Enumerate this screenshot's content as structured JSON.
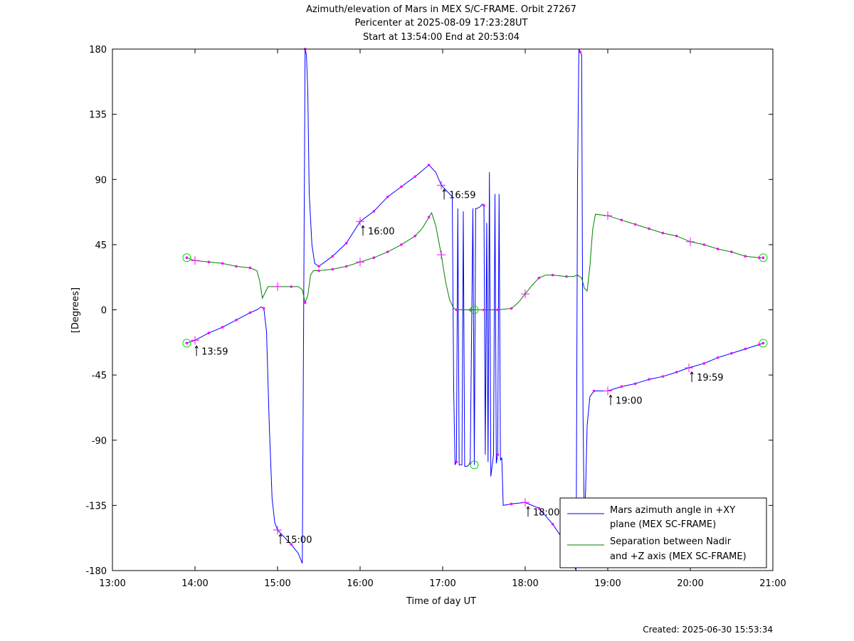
{
  "chart_data": {
    "type": "line",
    "title_lines": [
      "Azimuth/elevation of Mars in MEX S/C-FRAME.  Orbit 27267",
      "Pericenter at 2025-08-09 17:23:28UT",
      "Start at 13:54:00 End at 20:53:04"
    ],
    "xlabel": "Time of day UT",
    "ylabel": "[Degrees]",
    "xlim": [
      "13:00",
      "21:00"
    ],
    "ylim": [
      -180,
      180
    ],
    "x_ticks": [
      "13:00",
      "14:00",
      "15:00",
      "16:00",
      "17:00",
      "18:00",
      "19:00",
      "20:00",
      "21:00"
    ],
    "y_ticks": [
      "180",
      "135",
      "90",
      "45",
      "0",
      "-45",
      "-90",
      "-135",
      "-180"
    ],
    "colors": {
      "azimuth": "#0000ff",
      "separation": "#008000",
      "markers": "#ff00ff",
      "start_end": "#00dd00"
    },
    "legend": {
      "placement": "bottom-right",
      "entries": [
        {
          "line1": "Mars azimuth angle in +XY",
          "line2": "plane (MEX SC-FRAME)",
          "color": "#0000ff"
        },
        {
          "line1": "Separation between Nadir",
          "line2": "and +Z axis (MEX SC-FRAME)",
          "color": "#008000"
        }
      ]
    },
    "annotations": [
      {
        "label": "13:59",
        "x": "13:59",
        "y": -22
      },
      {
        "label": "15:00",
        "x": "15:00",
        "y": -152
      },
      {
        "label": "16:00",
        "x": "16:00",
        "y": 61
      },
      {
        "label": "16:59",
        "x": "16:59",
        "y": 86
      },
      {
        "label": "18:00",
        "x": "18:00",
        "y": -133
      },
      {
        "label": "19:00",
        "x": "19:00",
        "y": -56
      },
      {
        "label": "19:59",
        "x": "19:59",
        "y": -40
      }
    ],
    "series": [
      {
        "key": "azimuth",
        "name": "Mars azimuth angle in +XY plane (MEX SC-FRAME)",
        "points": [
          [
            "13:54",
            -23
          ],
          [
            "14:00",
            -21
          ],
          [
            "14:10",
            -16
          ],
          [
            "14:20",
            -12
          ],
          [
            "14:30",
            -7
          ],
          [
            "14:40",
            -2
          ],
          [
            "14:45",
            0
          ],
          [
            "14:48",
            2
          ],
          [
            "14:50",
            1
          ],
          [
            "14:52",
            -15
          ],
          [
            "14:54",
            -80
          ],
          [
            "14:56",
            -130
          ],
          [
            "14:58",
            -147
          ],
          [
            "15:00",
            -152
          ],
          [
            "15:05",
            -157
          ],
          [
            "15:10",
            -162
          ],
          [
            "15:15",
            -168
          ],
          [
            "15:18",
            -175
          ],
          [
            "15:20",
            180
          ],
          [
            "15:21",
            176
          ],
          [
            "15:22",
            150
          ],
          [
            "15:23",
            80
          ],
          [
            "15:25",
            45
          ],
          [
            "15:27",
            32
          ],
          [
            "15:30",
            30
          ],
          [
            "15:40",
            37
          ],
          [
            "15:50",
            46
          ],
          [
            "16:00",
            61
          ],
          [
            "16:10",
            68
          ],
          [
            "16:20",
            78
          ],
          [
            "16:30",
            85
          ],
          [
            "16:40",
            92
          ],
          [
            "16:50",
            100
          ],
          [
            "16:55",
            95
          ],
          [
            "16:59",
            86
          ],
          [
            "17:05",
            80
          ],
          [
            "17:07",
            78
          ],
          [
            "17:08",
            -55
          ],
          [
            "17:09",
            -107
          ],
          [
            "17:10",
            -105
          ],
          [
            "17:11",
            70
          ],
          [
            "17:12",
            -107
          ],
          [
            "17:14",
            -107
          ],
          [
            "17:15",
            68
          ],
          [
            "17:16",
            -108
          ],
          [
            "17:18",
            -108
          ],
          [
            "17:20",
            -106
          ],
          [
            "17:22",
            70
          ],
          [
            "17:23",
            -107
          ],
          [
            "17:24",
            70
          ],
          [
            "17:25",
            70
          ],
          [
            "17:27",
            71
          ],
          [
            "17:29",
            73
          ],
          [
            "17:30",
            72
          ],
          [
            "17:31",
            -100
          ],
          [
            "17:32",
            60
          ],
          [
            "17:33",
            -105
          ],
          [
            "17:34",
            95
          ],
          [
            "17:35",
            -115
          ],
          [
            "17:37",
            -100
          ],
          [
            "17:38",
            80
          ],
          [
            "17:39",
            -106
          ],
          [
            "17:40",
            -100
          ],
          [
            "17:41",
            80
          ],
          [
            "17:42",
            -104
          ],
          [
            "17:43",
            -102
          ],
          [
            "17:44",
            -135
          ],
          [
            "17:50",
            -134
          ],
          [
            "18:00",
            -133
          ],
          [
            "18:10",
            -137
          ],
          [
            "18:20",
            -148
          ],
          [
            "18:30",
            -162
          ],
          [
            "18:35",
            -175
          ],
          [
            "18:37",
            -180
          ],
          [
            "18:38",
            90
          ],
          [
            "18:39",
            180
          ],
          [
            "18:40",
            178
          ],
          [
            "18:41",
            176
          ],
          [
            "18:42",
            -70
          ],
          [
            "18:43",
            -150
          ],
          [
            "18:44",
            -120
          ],
          [
            "18:45",
            -80
          ],
          [
            "18:47",
            -60
          ],
          [
            "18:50",
            -56
          ],
          [
            "19:00",
            -56
          ],
          [
            "19:10",
            -53
          ],
          [
            "19:20",
            -51
          ],
          [
            "19:30",
            -48
          ],
          [
            "19:40",
            -46
          ],
          [
            "19:50",
            -43
          ],
          [
            "19:59",
            -40
          ],
          [
            "20:10",
            -37
          ],
          [
            "20:20",
            -33
          ],
          [
            "20:30",
            -30
          ],
          [
            "20:40",
            -27
          ],
          [
            "20:50",
            -24
          ],
          [
            "20:53",
            -23
          ]
        ]
      },
      {
        "key": "separation",
        "name": "Separation between Nadir and +Z axis (MEX SC-FRAME)",
        "points": [
          [
            "13:54",
            36
          ],
          [
            "14:00",
            34
          ],
          [
            "14:10",
            33
          ],
          [
            "14:20",
            32
          ],
          [
            "14:30",
            30
          ],
          [
            "14:40",
            29
          ],
          [
            "14:45",
            27
          ],
          [
            "14:47",
            20
          ],
          [
            "14:49",
            8
          ],
          [
            "14:51",
            12
          ],
          [
            "14:53",
            16
          ],
          [
            "15:00",
            16
          ],
          [
            "15:10",
            16
          ],
          [
            "15:15",
            16
          ],
          [
            "15:18",
            14
          ],
          [
            "15:20",
            5
          ],
          [
            "15:22",
            10
          ],
          [
            "15:24",
            24
          ],
          [
            "15:26",
            27
          ],
          [
            "15:30",
            27
          ],
          [
            "15:40",
            28
          ],
          [
            "15:50",
            30
          ],
          [
            "16:00",
            33
          ],
          [
            "16:10",
            36
          ],
          [
            "16:20",
            40
          ],
          [
            "16:30",
            45
          ],
          [
            "16:40",
            51
          ],
          [
            "16:45",
            56
          ],
          [
            "16:50",
            64
          ],
          [
            "16:52",
            67
          ],
          [
            "16:55",
            58
          ],
          [
            "16:59",
            38
          ],
          [
            "17:02",
            20
          ],
          [
            "17:05",
            7
          ],
          [
            "17:08",
            1
          ],
          [
            "17:10",
            0
          ],
          [
            "17:20",
            0
          ],
          [
            "17:30",
            0
          ],
          [
            "17:40",
            0
          ],
          [
            "17:50",
            1
          ],
          [
            "17:55",
            5
          ],
          [
            "18:00",
            11
          ],
          [
            "18:05",
            17
          ],
          [
            "18:10",
            22
          ],
          [
            "18:15",
            24
          ],
          [
            "18:20",
            24
          ],
          [
            "18:30",
            23
          ],
          [
            "18:35",
            23
          ],
          [
            "18:38",
            24
          ],
          [
            "18:41",
            22
          ],
          [
            "18:43",
            15
          ],
          [
            "18:45",
            13
          ],
          [
            "18:47",
            30
          ],
          [
            "18:49",
            55
          ],
          [
            "18:51",
            66
          ],
          [
            "19:00",
            65
          ],
          [
            "19:10",
            62
          ],
          [
            "19:20",
            59
          ],
          [
            "19:30",
            56
          ],
          [
            "19:40",
            53
          ],
          [
            "19:50",
            51
          ],
          [
            "20:00",
            47
          ],
          [
            "20:10",
            45
          ],
          [
            "20:20",
            42
          ],
          [
            "20:30",
            40
          ],
          [
            "20:40",
            37
          ],
          [
            "20:50",
            36
          ],
          [
            "20:53",
            36
          ]
        ]
      }
    ],
    "footer": "Created: 2025-06-30 15:53:34"
  }
}
